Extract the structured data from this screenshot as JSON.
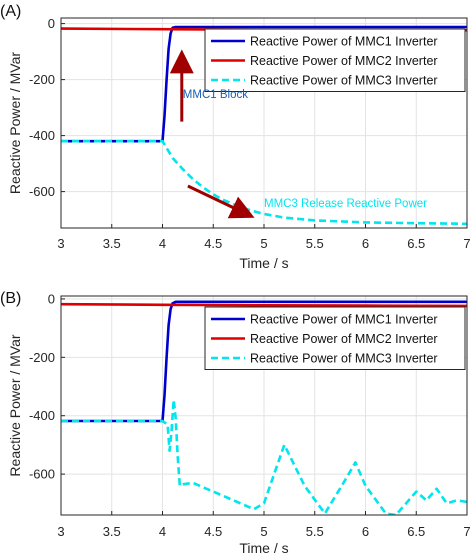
{
  "chart_data": [
    {
      "type": "line",
      "panel_label": "(A)",
      "xlabel": "Time / s",
      "ylabel": "Reactive Power / MVar",
      "xlim": [
        3,
        7
      ],
      "ylim": [
        -730,
        20
      ],
      "xticks": [
        3,
        3.5,
        4,
        4.5,
        5,
        5.5,
        6,
        6.5,
        7
      ],
      "xtick_labels": [
        "3",
        "3.5",
        "4",
        "4.5",
        "5",
        "5.5",
        "6",
        "6.5",
        "7"
      ],
      "yticks": [
        0,
        -200,
        -400,
        -600
      ],
      "ytick_labels": [
        "0",
        "-200",
        "-400",
        "-600"
      ],
      "grid": true,
      "legend_position": "top-right",
      "series": [
        {
          "name": "Reactive Power of MMC1 Inverter",
          "color": "#0000cc",
          "style": "solid",
          "points": [
            [
              3,
              -420
            ],
            [
              4,
              -420
            ],
            [
              4.02,
              -330
            ],
            [
              4.04,
              -200
            ],
            [
              4.06,
              -90
            ],
            [
              4.08,
              -35
            ],
            [
              4.1,
              -15
            ],
            [
              4.13,
              -12
            ],
            [
              5,
              -12
            ],
            [
              6,
              -12
            ],
            [
              7,
              -12
            ]
          ]
        },
        {
          "name": "Reactive Power of MMC2 Inverter",
          "color": "#dd0000",
          "style": "solid",
          "points": [
            [
              3,
              -18
            ],
            [
              4,
              -20
            ],
            [
              5,
              -22
            ],
            [
              6,
              -23
            ],
            [
              7,
              -24
            ]
          ]
        },
        {
          "name": "Reactive Power of MMC3 Inverter",
          "color": "#00e5ee",
          "style": "dashed",
          "points": [
            [
              3,
              -420
            ],
            [
              4,
              -420
            ],
            [
              4.05,
              -450
            ],
            [
              4.1,
              -480
            ],
            [
              4.2,
              -520
            ],
            [
              4.3,
              -555
            ],
            [
              4.4,
              -585
            ],
            [
              4.5,
              -610
            ],
            [
              4.6,
              -630
            ],
            [
              4.8,
              -660
            ],
            [
              5,
              -680
            ],
            [
              5.2,
              -693
            ],
            [
              5.5,
              -703
            ],
            [
              6,
              -710
            ],
            [
              6.5,
              -713
            ],
            [
              7,
              -715
            ]
          ]
        }
      ],
      "annotations": [
        {
          "text": "MMC1 Block",
          "color": "#1a5fb4",
          "x": 4.2,
          "y": -265
        },
        {
          "text": "MMC3 Release Reactive Power",
          "color": "#00e5ee",
          "x": 5,
          "y": -655
        }
      ],
      "arrows": [
        {
          "from": [
            4.19,
            -350
          ],
          "to": [
            4.19,
            -135
          ],
          "color": "#a00000"
        },
        {
          "from": [
            4.25,
            -580
          ],
          "to": [
            4.8,
            -675
          ],
          "color": "#a00000"
        }
      ]
    },
    {
      "type": "line",
      "panel_label": "(B)",
      "xlabel": "Time / s",
      "ylabel": "Reactive Power / MVar",
      "xlim": [
        3,
        7
      ],
      "ylim": [
        -740,
        10
      ],
      "xticks": [
        3,
        3.5,
        4,
        4.5,
        5,
        5.5,
        6,
        6.5,
        7
      ],
      "xtick_labels": [
        "3",
        "3.5",
        "4",
        "4.5",
        "5",
        "5.5",
        "6",
        "6.5",
        "7"
      ],
      "yticks": [
        0,
        -200,
        -400,
        -600
      ],
      "ytick_labels": [
        "0",
        "-200",
        "-400",
        "-600"
      ],
      "grid": true,
      "legend_position": "top-right",
      "series": [
        {
          "name": "Reactive Power of MMC1 Inverter",
          "color": "#0000cc",
          "style": "solid",
          "points": [
            [
              3,
              -418
            ],
            [
              4,
              -418
            ],
            [
              4.02,
              -330
            ],
            [
              4.04,
              -200
            ],
            [
              4.06,
              -90
            ],
            [
              4.08,
              -35
            ],
            [
              4.1,
              -15
            ],
            [
              4.13,
              -10
            ],
            [
              5,
              -10
            ],
            [
              6,
              -10
            ],
            [
              7,
              -10
            ]
          ]
        },
        {
          "name": "Reactive Power of MMC2 Inverter",
          "color": "#dd0000",
          "style": "solid",
          "points": [
            [
              3,
              -18
            ],
            [
              4,
              -20
            ],
            [
              5,
              -22
            ],
            [
              6,
              -23
            ],
            [
              7,
              -24
            ]
          ]
        },
        {
          "name": "Reactive Power of MMC3 Inverter",
          "color": "#00e5ee",
          "style": "dashed",
          "points": [
            [
              3,
              -418
            ],
            [
              4,
              -418
            ],
            [
              4.05,
              -430
            ],
            [
              4.07,
              -520
            ],
            [
              4.09,
              -450
            ],
            [
              4.11,
              -345
            ],
            [
              4.13,
              -410
            ],
            [
              4.15,
              -540
            ],
            [
              4.17,
              -640
            ],
            [
              4.2,
              -635
            ],
            [
              4.3,
              -630
            ],
            [
              4.5,
              -660
            ],
            [
              4.7,
              -690
            ],
            [
              4.9,
              -720
            ],
            [
              5,
              -700
            ],
            [
              5.2,
              -500
            ],
            [
              5.4,
              -640
            ],
            [
              5.6,
              -735
            ],
            [
              5.8,
              -620
            ],
            [
              5.9,
              -560
            ],
            [
              6,
              -640
            ],
            [
              6.2,
              -735
            ],
            [
              6.3,
              -740
            ],
            [
              6.5,
              -660
            ],
            [
              6.6,
              -690
            ],
            [
              6.7,
              -650
            ],
            [
              6.8,
              -700
            ],
            [
              6.9,
              -690
            ],
            [
              7,
              -695
            ]
          ]
        }
      ]
    }
  ]
}
